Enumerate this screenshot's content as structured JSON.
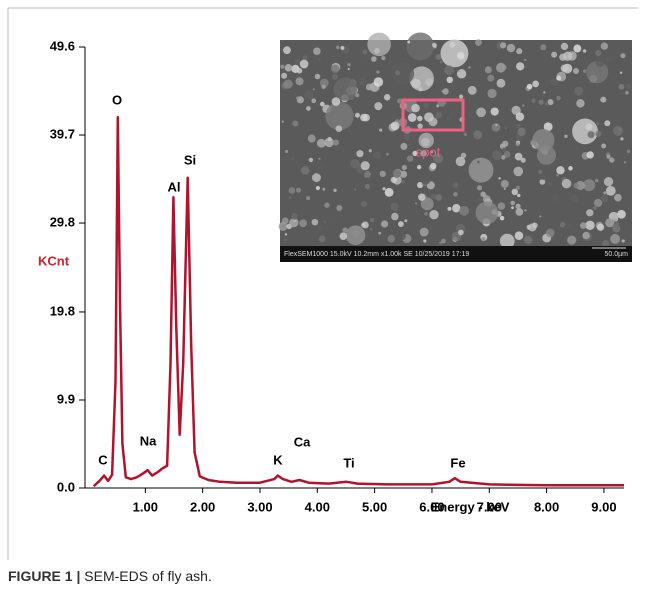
{
  "chart_data": {
    "type": "line",
    "ylabel": "KCnt",
    "xlabel": "Energy - keV",
    "x": [
      0.1,
      0.2,
      0.28,
      0.35,
      0.42,
      0.48,
      0.52,
      0.56,
      0.6,
      0.66,
      0.75,
      0.85,
      0.95,
      1.04,
      1.12,
      1.22,
      1.3,
      1.38,
      1.44,
      1.49,
      1.54,
      1.6,
      1.66,
      1.74,
      1.8,
      1.86,
      1.95,
      2.1,
      2.3,
      2.6,
      3.0,
      3.25,
      3.31,
      3.4,
      3.55,
      3.69,
      3.85,
      4.2,
      4.51,
      4.7,
      5.2,
      6.0,
      6.3,
      6.4,
      6.5,
      7.0,
      8.0,
      9.35
    ],
    "series": [
      {
        "color": "#b3122b",
        "values": [
          0.2,
          0.8,
          1.4,
          0.8,
          1.5,
          12,
          41.7,
          20,
          5,
          1.2,
          1.0,
          1.2,
          1.6,
          2.0,
          1.4,
          1.8,
          2.2,
          2.5,
          14,
          32.7,
          18,
          6,
          14,
          34.9,
          16,
          4,
          1.3,
          0.9,
          0.7,
          0.6,
          0.6,
          1.0,
          1.4,
          1.0,
          0.7,
          0.9,
          0.6,
          0.5,
          0.7,
          0.5,
          0.4,
          0.4,
          0.7,
          1.1,
          0.7,
          0.4,
          0.3,
          0.3
        ]
      }
    ],
    "xlim": [
      0,
      9.35
    ],
    "xticks": [
      {
        "value": 1,
        "label": "1.00"
      },
      {
        "value": 2,
        "label": "2.00"
      },
      {
        "value": 3,
        "label": "3.00"
      },
      {
        "value": 4,
        "label": "4.00"
      },
      {
        "value": 5,
        "label": "5.00"
      },
      {
        "value": 6,
        "label": "6.00"
      },
      {
        "value": 7,
        "label": "7.00"
      },
      {
        "value": 8,
        "label": "8.00"
      },
      {
        "value": 9,
        "label": "9.00"
      }
    ],
    "ylim": [
      0,
      49.6
    ],
    "yticks": [
      {
        "value": 0,
        "label": "0.0"
      },
      9.9,
      19.8,
      29.8,
      39.7,
      49.6
    ],
    "annotations": [
      "O",
      "Al",
      "Si",
      "C",
      "Na",
      "K",
      "Ca",
      "Ti",
      "Fe"
    ],
    "inset": {
      "marker_label": "spot",
      "info_bar": "FlexSEM1000 15.0kV 10.2mm x1.00k SE 10/25/2019 17:19",
      "scale_label": "50.0µm"
    }
  },
  "caption": {
    "label": "FIGURE 1 |",
    "text": "SEM-EDS of fly ash."
  }
}
